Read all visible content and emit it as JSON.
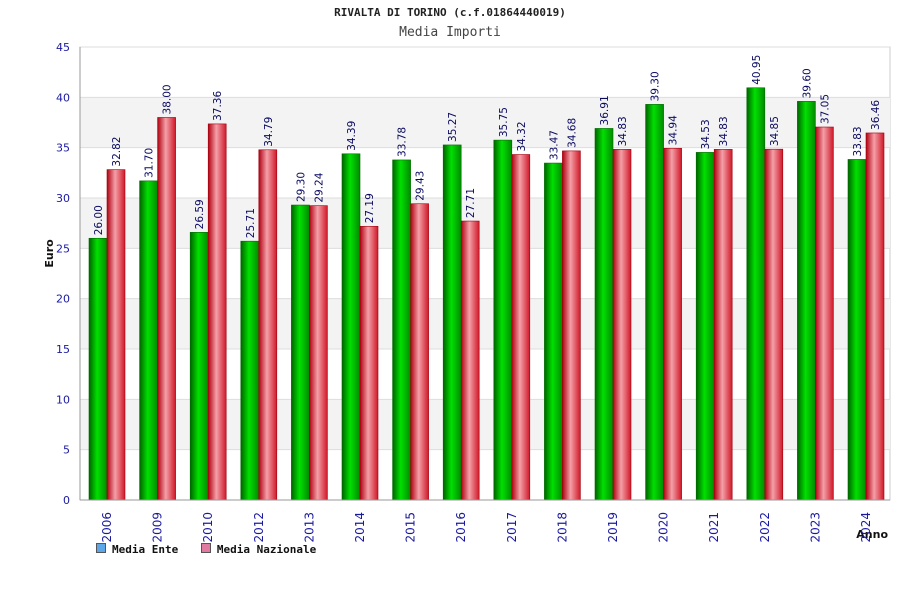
{
  "title": "RIVALTA DI TORINO (c.f.01864440019)",
  "subtitle": "Media Importi",
  "colors": {
    "ente": "#00c000",
    "nazionale": "#e0303a",
    "legend_ente": "#5da6e8",
    "legend_nazionale": "#e07aa0",
    "tick_text": "#1a1aa0"
  },
  "chart_data": {
    "type": "bar",
    "title": "Media Importi",
    "xlabel": "Anno",
    "ylabel": "Euro",
    "ylim": [
      0,
      45
    ],
    "yticks": [
      0,
      5,
      10,
      15,
      20,
      25,
      30,
      35,
      40,
      45
    ],
    "categories": [
      "2006",
      "2009",
      "2010",
      "2012",
      "2013",
      "2014",
      "2015",
      "2016",
      "2017",
      "2018",
      "2019",
      "2020",
      "2021",
      "2022",
      "2023",
      "2024"
    ],
    "series": [
      {
        "name": "Media Ente",
        "values": [
          26.0,
          31.7,
          26.59,
          25.71,
          29.3,
          34.39,
          33.78,
          35.27,
          35.75,
          33.47,
          36.91,
          39.3,
          34.53,
          40.95,
          39.6,
          33.83
        ],
        "labels": [
          "26.00",
          "31.70",
          "26.59",
          "25.71",
          "29.30",
          "34.39",
          "33.78",
          "35.27",
          "35.75",
          "33.47",
          "36.91",
          "39.30",
          "34.53",
          "40.95",
          "39.60",
          "33.83"
        ]
      },
      {
        "name": "Media Nazionale",
        "values": [
          32.82,
          38.0,
          37.36,
          34.79,
          29.24,
          27.19,
          29.43,
          27.71,
          34.32,
          34.68,
          34.83,
          34.94,
          34.83,
          34.85,
          37.05,
          36.46
        ],
        "labels": [
          "32.82",
          "38.00",
          "37.36",
          "34.79",
          "29.24",
          "27.19",
          "29.43",
          "27.71",
          "34.32",
          "34.68",
          "34.83",
          "34.94",
          "34.83",
          "34.85",
          "37.05",
          "36.46"
        ]
      }
    ],
    "grid": true,
    "legend_position": "bottom-left"
  },
  "legend": {
    "ente": "Media Ente",
    "nazionale": "Media Nazionale"
  }
}
